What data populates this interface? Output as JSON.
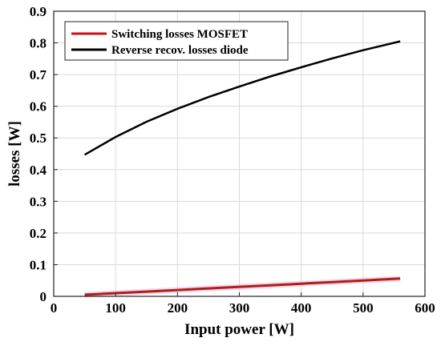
{
  "chart_data": {
    "type": "line",
    "xlabel": "Input power [W]",
    "ylabel": "losses [W]",
    "xlim": [
      0,
      600
    ],
    "ylim": [
      0,
      0.9
    ],
    "x_ticks": [
      "0",
      "100",
      "200",
      "300",
      "400",
      "500",
      "600"
    ],
    "y_ticks": [
      "0",
      "0.1",
      "0.2",
      "0.3",
      "0.4",
      "0.5",
      "0.6",
      "0.7",
      "0.8",
      "0.9"
    ],
    "grid": true,
    "legend_position": "top-left",
    "series": [
      {
        "name": "Switching losses MOSFET",
        "color": "#cc1111",
        "x": [
          50,
          100,
          150,
          200,
          250,
          300,
          350,
          400,
          450,
          500,
          560
        ],
        "y": [
          0.005,
          0.01,
          0.015,
          0.02,
          0.025,
          0.03,
          0.035,
          0.04,
          0.045,
          0.05,
          0.056
        ]
      },
      {
        "name": "Reverse recov. losses diode",
        "color": "#000000",
        "x": [
          50,
          100,
          150,
          200,
          250,
          300,
          350,
          400,
          450,
          500,
          560
        ],
        "y": [
          0.447,
          0.503,
          0.551,
          0.592,
          0.629,
          0.662,
          0.694,
          0.723,
          0.751,
          0.777,
          0.805
        ]
      }
    ]
  }
}
